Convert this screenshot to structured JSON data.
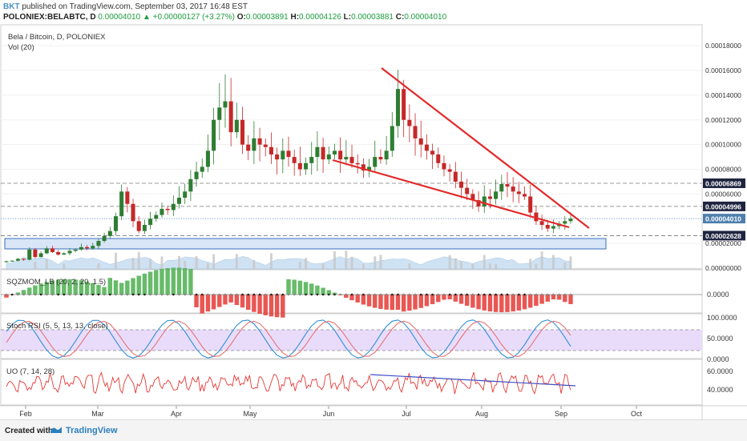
{
  "header": {
    "author": "BKT",
    "published_text": "published on TradingView.com, September 03, 2017 16:48 EST",
    "symbol": "POLONIEX:BELABTC, D",
    "last": "0.00004010",
    "change": "+0.00000127 (+3.27%)",
    "o_label": "O:",
    "o": "0.00003891",
    "h_label": "H:",
    "h": "0.00004126",
    "l_label": "L:",
    "l": "0.00003881",
    "c_label": "C:",
    "c": "0.00004010"
  },
  "main_pane": {
    "title": "Bela / Bitcoin, D, POLONIEX",
    "vol_label": "Vol (20)"
  },
  "sqz_pane": {
    "label": "SQZMOM_LB (20, 2, 20, 1.5)",
    "axis": [
      "0.0000"
    ]
  },
  "stoch_pane": {
    "label": "Stoch RSI (5, 5, 13, 13, close)",
    "axis": [
      "100.0000",
      "50.0000",
      "0.0000"
    ]
  },
  "uo_pane": {
    "label": "UO (7, 14, 28)",
    "axis": [
      "60.0000",
      "40.0000"
    ]
  },
  "footer": {
    "created_with": "Created with",
    "brand": "TradingView"
  },
  "colors": {
    "up": "#2e7d32",
    "down": "#c62828",
    "trend": "#e32a2a",
    "sqz_up": "#4caf50",
    "sqz_down": "#e53935",
    "stoch_k": "#2f8fd8",
    "stoch_d": "#e57373",
    "uo": "#e53935"
  },
  "chart_data": {
    "type": "candlestick",
    "price_axis": [
      "0.00018000",
      "0.00016000",
      "0.00014000",
      "0.00012000",
      "0.00010000",
      "0.00008000",
      "0.00006000",
      "0.00004000",
      "0.00002000",
      "0.00000000"
    ],
    "price_tags": [
      {
        "value": "0.00006869",
        "style": "dark"
      },
      {
        "value": "0.00004996",
        "style": "dark"
      },
      {
        "value": "0.00004010",
        "style": "blue"
      },
      {
        "value": "0.00002628",
        "style": "dark"
      }
    ],
    "x_ticks": [
      "Feb",
      "Mar",
      "Apr",
      "May",
      "Jun",
      "Jul",
      "Aug",
      "Sep",
      "Oct"
    ],
    "ylim": [
      0,
      0.000195
    ],
    "closes": [
      5.5e-06,
      6e-06,
      7.5e-06,
      6.8e-06,
      1.5e-05,
      9e-06,
      1.2e-05,
      1.6e-05,
      1.3e-05,
      1.1e-05,
      1.2e-05,
      1.4e-05,
      1.5e-05,
      1.7e-05,
      1.6e-05,
      1.8e-05,
      2.2e-05,
      2.6e-05,
      3e-05,
      4.2e-05,
      6.2e-05,
      5.2e-05,
      3.8e-05,
      3e-05,
      3.5e-05,
      4e-05,
      4.3e-05,
      4.8e-05,
      4.7e-05,
      5.2e-05,
      5.7e-05,
      6.2e-05,
      7.2e-05,
      7.8e-05,
      8.2e-05,
      9.5e-05,
      0.00012,
      0.00013,
      0.000135,
      0.00011,
      0.00012,
      0.0001,
      9.5e-05,
      0.000105,
      0.0001,
      9.8e-05,
      9.2e-05,
      8.8e-05,
      9.5e-05,
      9e-05,
      8.5e-05,
      8e-05,
      8.5e-05,
      9e-05,
      9.8e-05,
      8.8e-05,
      9.2e-05,
      9.5e-05,
      8.8e-05,
      9e-05,
      8.5e-05,
      8.4e-05,
      7.9e-05,
      8.2e-05,
      9e-05,
      8.8e-05,
      9.5e-05,
      0.000115,
      0.000145,
      0.00012,
      0.000115,
      0.000105,
      0.0001,
      9.5e-05,
      9.2e-05,
      8.5e-05,
      8e-05,
      7.8e-05,
      7e-05,
      6.5e-05,
      6e-05,
      5.5e-05,
      5e-05,
      5.8e-05,
      5.6e-05,
      6.2e-05,
      6.8e-05,
      6.6e-05,
      6.2e-05,
      6e-05,
      5.8e-05,
      4.5e-05,
      3.8e-05,
      3.5e-05,
      3.2e-05,
      3.4e-05,
      3.6e-05,
      3.8e-05,
      4e-05
    ]
  }
}
